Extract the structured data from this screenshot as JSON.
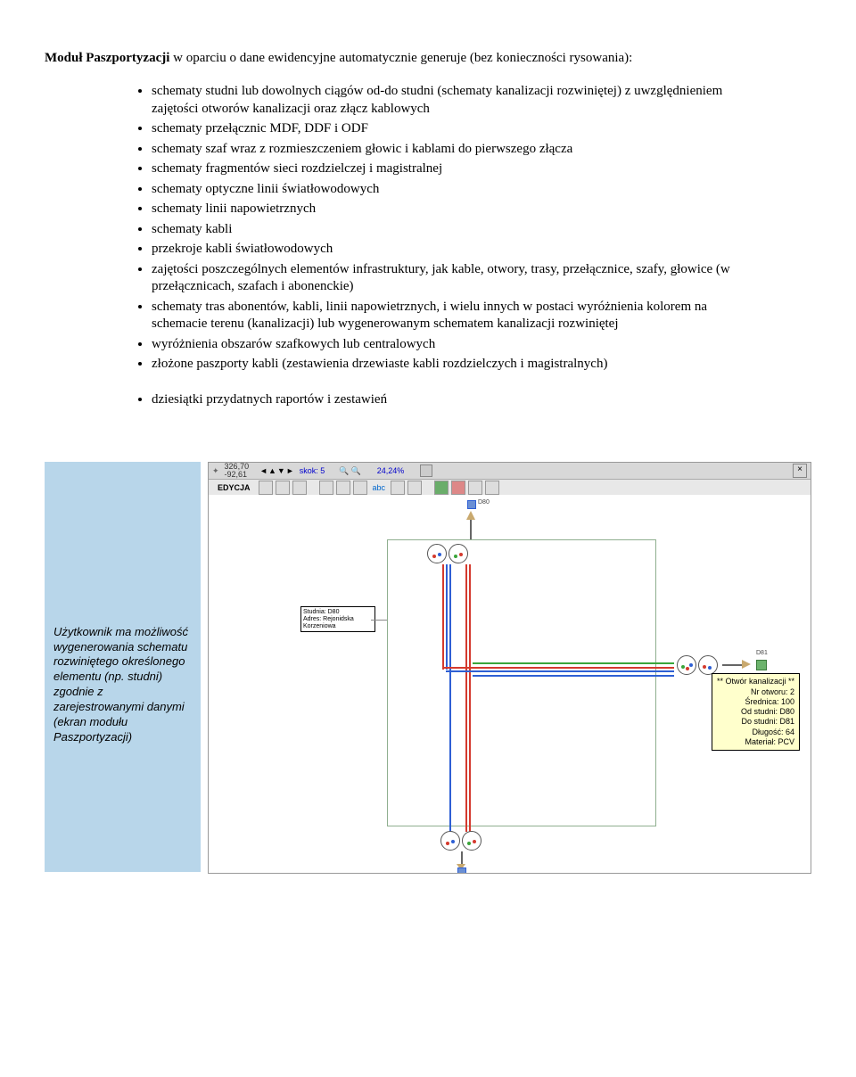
{
  "intro": {
    "bold_lead": "Moduł Paszportyzacji",
    "rest": " w oparciu o dane ewidencyjne automatycznie generuje (bez konieczności rysowania):"
  },
  "bullets_main": [
    "schematy studni lub dowolnych ciągów od-do studni (schematy kanalizacji rozwiniętej) z uwzględnieniem zajętości otworów kanalizacji oraz złącz kablowych",
    "schematy przełącznic MDF, DDF i ODF",
    "schematy szaf wraz z rozmieszczeniem głowic i kablami do pierwszego złącza",
    "schematy fragmentów sieci rozdzielczej i magistralnej",
    "schematy optyczne linii światłowodowych",
    "schematy linii napowietrznych",
    "schematy kabli",
    "przekroje kabli światłowodowych",
    "zajętości poszczególnych elementów infrastruktury, jak kable, otwory, trasy, przełącznice, szafy, głowice (w przełącznicach, szafach i abonenckie)",
    "schematy tras abonentów, kabli, linii napowietrznych, i wielu innych w postaci wyróżnienia kolorem na schemacie terenu (kanalizacji) lub wygenerowanym schematem kanalizacji rozwiniętej",
    "wyróżnienia obszarów szafkowych lub centralowych",
    "złożone paszporty kabli (zestawienia drzewiaste kabli rozdzielczych i magistralnych)"
  ],
  "bullets_secondary": [
    "dziesiątki przydatnych raportów i zestawień"
  ],
  "sidenote": "Użytkownik ma możliwość wygenerowania schematu rozwiniętego określonego elementu (np. studni) zgodnie z zarejestrowanymi danymi (ekran modułu Paszportyzacji)",
  "screenshot": {
    "coords_top": "326,70",
    "coords_bottom": "-92,61",
    "skok_label": "skok:",
    "skok_value": "5",
    "zoom": "24,24%",
    "toolbar_label": "EDYCJA",
    "abc_label": "abc",
    "infobox_line1": "Studnia: D80",
    "infobox_line2": "Adres: Rejonidska",
    "infobox_line3": "Korzeniowa",
    "small_top_label": "D80",
    "small_right_label": "D81",
    "tooltip_title": "** Otwór kanalizacji **",
    "tooltip_lines": [
      "Nr otworu: 2",
      "Średnica: 100",
      "Od studni: D80",
      "Do studni: D81",
      "Długość: 64",
      "Materiał: PCV"
    ],
    "colors": {
      "red": "#d43a2e",
      "blue": "#2e5fd4",
      "green": "#3aa53a",
      "brown": "#c9a96e",
      "frame": "#8faf8f"
    }
  }
}
